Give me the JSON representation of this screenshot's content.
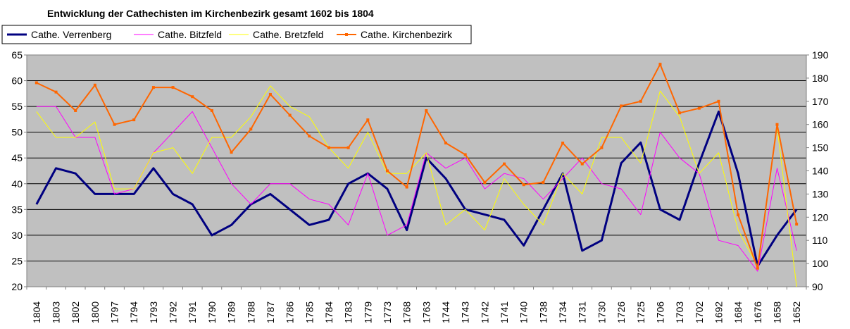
{
  "chart_data": {
    "type": "line",
    "title": "Entwicklung der Cathechisten  im Kirchenbezirk gesamt 1602 bis 1804",
    "xlabel": "",
    "ylabel": "",
    "grid": true,
    "legend": "top-left",
    "categories": [
      "1804",
      "1803",
      "1802",
      "1800",
      "1797",
      "1794",
      "1793",
      "1792",
      "1791",
      "1790",
      "1789",
      "1788",
      "1787",
      "1786",
      "1785",
      "1784",
      "1783",
      "1779",
      "1773",
      "1768",
      "1763",
      "1744",
      "1743",
      "1742",
      "1741",
      "1740",
      "1738",
      "1734",
      "1731",
      "1730",
      "1726",
      "1725",
      "1706",
      "1703",
      "1702",
      "1692",
      "1684",
      "1676",
      "1658",
      "1652"
    ],
    "ylim": [
      20,
      65
    ],
    "yticks": [
      20,
      25,
      30,
      35,
      40,
      45,
      50,
      55,
      60,
      65
    ],
    "y2lim": [
      90,
      190
    ],
    "y2ticks": [
      90,
      100,
      110,
      120,
      130,
      140,
      150,
      160,
      170,
      180,
      190
    ],
    "series": [
      {
        "name": "Cathe. Verrenberg",
        "axis": "left",
        "color": "#000080",
        "values": [
          36,
          43,
          42,
          38,
          38,
          38,
          43,
          38,
          36,
          30,
          32,
          36,
          38,
          35,
          32,
          33,
          40,
          42,
          39,
          31,
          45,
          41,
          35,
          34,
          33,
          28,
          35,
          42,
          27,
          29,
          44,
          48,
          35,
          33,
          44,
          54,
          42,
          24,
          30,
          35
        ]
      },
      {
        "name": "Cathe. Bitzfeld",
        "axis": "left",
        "color": "#ff00ff",
        "values": [
          55,
          55,
          49,
          49,
          38,
          39,
          46,
          50,
          54,
          47,
          40,
          36,
          40,
          40,
          37,
          36,
          32,
          42,
          30,
          32,
          46,
          43,
          45,
          39,
          42,
          41,
          37,
          41,
          45,
          40,
          39,
          34,
          50,
          45,
          42,
          29,
          28,
          23,
          43,
          27
        ]
      },
      {
        "name": "Cathe. Bretzfeld",
        "axis": "left",
        "color": "#ffff00",
        "values": [
          54,
          49,
          49,
          52,
          39,
          39,
          46,
          47,
          42,
          49,
          49,
          53,
          59,
          55,
          53,
          47,
          43,
          50,
          42,
          42,
          46,
          32,
          35,
          31,
          41,
          36,
          32,
          42,
          38,
          49,
          49,
          44,
          58,
          53,
          42,
          46,
          31,
          24,
          51,
          20
        ]
      },
      {
        "name": "Cathe. Kirchenbezirk",
        "axis": "right",
        "color": "#ff6600",
        "values": [
          178,
          174,
          166,
          177,
          160,
          162,
          176,
          176,
          172,
          166,
          148,
          158,
          173,
          164,
          155,
          150,
          150,
          162,
          140,
          133,
          166,
          152,
          147,
          135,
          143,
          134,
          135,
          152,
          143,
          150,
          168,
          170,
          186,
          165,
          167,
          170,
          121,
          98,
          160,
          117
        ]
      }
    ]
  }
}
